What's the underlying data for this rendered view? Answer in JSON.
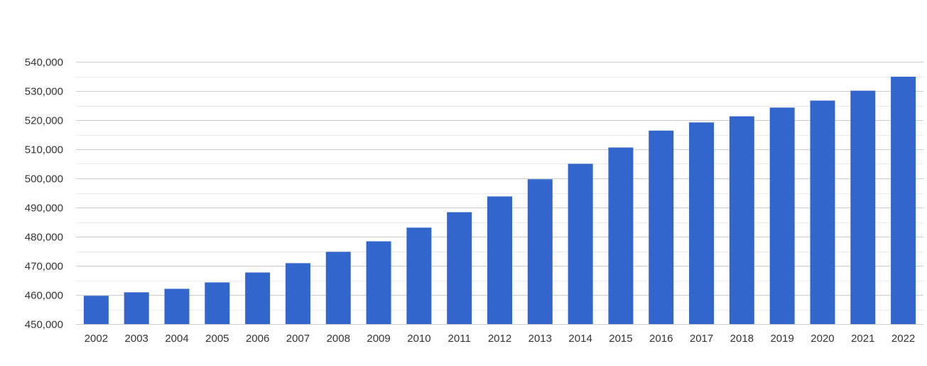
{
  "chart_data": {
    "type": "bar",
    "title": "",
    "xlabel": "",
    "ylabel": "",
    "categories": [
      "2002",
      "2003",
      "2004",
      "2005",
      "2006",
      "2007",
      "2008",
      "2009",
      "2010",
      "2011",
      "2012",
      "2013",
      "2014",
      "2015",
      "2016",
      "2017",
      "2018",
      "2019",
      "2020",
      "2021",
      "2022"
    ],
    "values": [
      459700,
      460900,
      462100,
      464300,
      467700,
      470900,
      474800,
      478400,
      483100,
      488400,
      493800,
      499700,
      505000,
      510600,
      516400,
      519200,
      521300,
      524300,
      526700,
      530100,
      534900
    ],
    "ylim": [
      450000,
      540000
    ],
    "yticks": [
      450000,
      460000,
      470000,
      480000,
      490000,
      500000,
      510000,
      520000,
      530000,
      540000
    ],
    "ytick_labels": [
      "450,000",
      "460,000",
      "470,000",
      "480,000",
      "490,000",
      "500,000",
      "510,000",
      "520,000",
      "530,000",
      "540,000"
    ],
    "grid": true,
    "minor_grid": true,
    "legend": "none",
    "colors": {
      "bar": "#3366cc",
      "grid_major": "#cccccc",
      "grid_minor": "#ebebeb",
      "text": "#333333"
    }
  }
}
